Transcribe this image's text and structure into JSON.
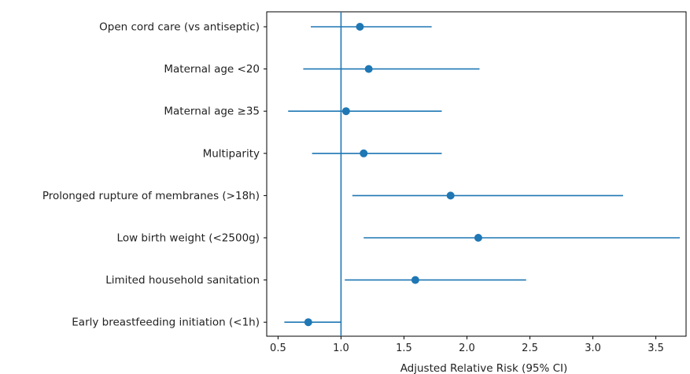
{
  "chart_data": {
    "type": "forest",
    "title": "",
    "xlabel": "Adjusted Relative Risk (95% CI)",
    "ylabel": "",
    "xlim": [
      0.41,
      3.74
    ],
    "xticks": [
      0.5,
      1.0,
      1.5,
      2.0,
      2.5,
      3.0,
      3.5
    ],
    "xtick_labels": [
      "0.5",
      "1.0",
      "1.5",
      "2.0",
      "2.5",
      "3.0",
      "3.5"
    ],
    "reference_line": 1.0,
    "color": "#1f77b4",
    "grid": false,
    "categories": [
      "Open cord care (vs antiseptic)",
      "Maternal age <20",
      "Maternal age ≥35",
      "Multiparity",
      "Prolonged rupture of membranes (>18h)",
      "Low birth weight (<2500g)",
      "Limited household sanitation",
      "Early breastfeeding initiation (<1h)"
    ],
    "estimates": [
      1.15,
      1.22,
      1.04,
      1.18,
      1.87,
      2.09,
      1.59,
      0.74
    ],
    "ci_lower": [
      0.76,
      0.7,
      0.58,
      0.77,
      1.09,
      1.18,
      1.03,
      0.55
    ],
    "ci_upper": [
      1.72,
      2.1,
      1.8,
      1.8,
      3.24,
      3.69,
      2.47,
      1.0
    ]
  }
}
